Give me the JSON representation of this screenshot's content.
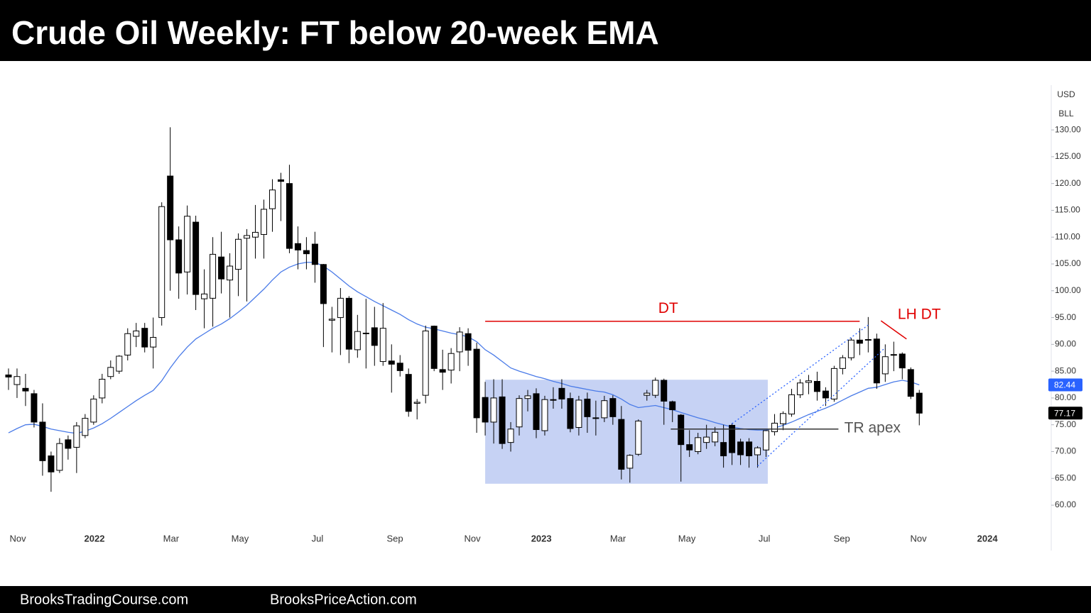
{
  "header": {
    "title": "Crude Oil Weekly: FT below 20-week EMA"
  },
  "footer": {
    "left": "BrooksTradingCourse.com",
    "right": "BrooksPriceAction.com"
  },
  "chart_data": {
    "type": "candlestick",
    "title": "Crude Oil Weekly: FT below 20-week EMA",
    "currency": "USD",
    "unit": "BLL",
    "categories": [
      null,
      null,
      null,
      null,
      null,
      null,
      null,
      null,
      null,
      null,
      null,
      null,
      null,
      null,
      null,
      null,
      null,
      null,
      null,
      null,
      null,
      null,
      null,
      null,
      null,
      null,
      null,
      null,
      null,
      null,
      null,
      null,
      null,
      null,
      null,
      null,
      null,
      null,
      null,
      null,
      null,
      null,
      null,
      null,
      null,
      null,
      null,
      null,
      null,
      null,
      null,
      null,
      null,
      null,
      null,
      null,
      null,
      null,
      null,
      null,
      null,
      null,
      null,
      null,
      null,
      null,
      null,
      null,
      null,
      null,
      null,
      null,
      null,
      null,
      null,
      null,
      null,
      null,
      null,
      null,
      null,
      null,
      null,
      null,
      null,
      null,
      null,
      null,
      null,
      null,
      null,
      null,
      null,
      null,
      null,
      null,
      null,
      null,
      null,
      null,
      null,
      null,
      null,
      null,
      null,
      null,
      null,
      null
    ],
    "open": [
      84.3,
      82.5,
      81.8,
      80.8,
      75.5,
      69.2,
      66.5,
      72.2,
      70.8,
      73,
      75.5,
      80,
      84,
      85,
      88,
      91.5,
      93,
      89.5,
      95,
      121.4,
      109.5,
      103.5,
      112.8,
      98.5,
      98.6,
      106.3,
      102,
      104,
      109.8,
      110,
      110.5,
      115.3,
      120.7,
      120,
      108.8,
      107.5,
      108.7,
      104.9,
      94.5,
      95,
      98.6,
      89,
      92,
      93.1,
      86.8,
      86.9,
      86.5,
      84.4,
      79,
      80.5,
      93.4,
      85.3,
      85.2,
      88.6,
      92,
      89.1,
      80.1,
      75.5,
      80.2,
      71.7,
      74.6,
      79.9,
      80.8,
      73.9,
      79.7,
      81.8,
      79.9,
      74.5,
      79.8,
      76.3,
      76.3,
      79.9,
      76,
      66.9,
      69.5,
      80.5,
      80.5,
      83.3,
      79.3,
      76.8,
      71.3,
      70,
      71.7,
      71.8,
      71.7,
      74.9,
      71.8,
      71.8,
      69.4,
      70.3,
      73.7,
      75.2,
      77,
      80.6,
      82.9,
      83.1,
      81.3,
      79.8,
      85.5,
      87.5,
      90.8,
      90.8,
      91,
      84.5,
      88,
      88.2,
      85.3,
      80.9
    ],
    "high": [
      85.5,
      85.5,
      84.5,
      81.5,
      79,
      70,
      72.5,
      73,
      75.5,
      77,
      80.5,
      84.5,
      87,
      88,
      93,
      94,
      94,
      95,
      116.5,
      130.5,
      112,
      115.9,
      114,
      104,
      110,
      111,
      107,
      110.7,
      111.5,
      116,
      117,
      120.8,
      122,
      123.5,
      112,
      110,
      111,
      105,
      97,
      100.5,
      99,
      95.5,
      98.5,
      97,
      97.7,
      90,
      88,
      85.5,
      79.8,
      93.5,
      93.5,
      89,
      89.3,
      93.2,
      93,
      90.3,
      83,
      83.5,
      83.5,
      75.5,
      80.5,
      81.5,
      81.8,
      80.4,
      82,
      83.5,
      81,
      80.4,
      81,
      79.5,
      80.4,
      80.5,
      78.5,
      69.5,
      76,
      81.5,
      83.8,
      83.6,
      79.5,
      77,
      74,
      73.5,
      75,
      74.6,
      75,
      75.3,
      72.4,
      72.5,
      71,
      74,
      77,
      77.5,
      81.7,
      83.5,
      84.3,
      84.9,
      82,
      86,
      88,
      91.2,
      93,
      95.1,
      92,
      90,
      90.5,
      88.5,
      85.7,
      81.5
    ],
    "low": [
      81.5,
      80,
      78.5,
      74.5,
      65.5,
      62.5,
      66,
      68.5,
      66,
      72.5,
      75,
      79,
      83.5,
      84.5,
      87,
      89.5,
      88.5,
      85.5,
      93.5,
      100,
      98.5,
      99.3,
      96.4,
      93,
      93.3,
      99.5,
      95,
      99,
      98,
      106,
      106,
      111,
      113,
      107,
      104,
      104,
      101.5,
      89.5,
      88.5,
      88,
      86.5,
      87.5,
      85.5,
      86,
      86,
      81,
      84,
      76.5,
      76,
      79,
      85,
      81.5,
      82.7,
      85,
      86,
      73.5,
      73,
      71.5,
      70.5,
      70,
      73,
      77.5,
      72.5,
      73,
      78,
      78,
      73.6,
      73,
      73.5,
      73,
      75.5,
      75,
      64.8,
      64.2,
      69.2,
      79.5,
      80,
      75,
      75.5,
      64.4,
      69,
      69.5,
      70.5,
      71,
      67,
      67.5,
      67.5,
      67,
      67,
      69,
      73,
      74,
      76.5,
      80,
      80.7,
      79.5,
      78.5,
      79.3,
      84.4,
      87,
      88,
      88.5,
      81.7,
      83,
      85,
      83.5,
      79.8,
      74.9
    ],
    "close": [
      83.9,
      84.0,
      81.3,
      75.5,
      68.3,
      66.2,
      71.5,
      70.6,
      74.8,
      76.2,
      79.8,
      83.5,
      85.7,
      87.8,
      92,
      92.5,
      89.5,
      91.3,
      115.7,
      109.5,
      103.3,
      113.9,
      99.3,
      99.4,
      106.8,
      102.2,
      104.6,
      109.6,
      110.3,
      110.9,
      115.2,
      118.8,
      120.4,
      107.9,
      107.6,
      106.9,
      104.9,
      97.6,
      94.7,
      98.6,
      89.1,
      92.4,
      92.1,
      89.8,
      93,
      86.3,
      85.1,
      77.5,
      79.2,
      92.5,
      85.5,
      84.8,
      88.3,
      92.3,
      88.9,
      76.3,
      75.5,
      80,
      71.5,
      74.2,
      79.9,
      80.4,
      74.1,
      79.7,
      79.6,
      79.8,
      74.3,
      79.6,
      76.5,
      76.2,
      79.5,
      76.5,
      66.7,
      69.3,
      75.7,
      80.9,
      83.3,
      79.4,
      77.8,
      71.3,
      70.3,
      72.6,
      72.7,
      73.6,
      69.2,
      69.8,
      69.4,
      69.2,
      70.7,
      73.9,
      75.3,
      77.1,
      80.6,
      82.8,
      83.2,
      81.2,
      80,
      85.5,
      87.5,
      90.8,
      90.2,
      90.9,
      82.8,
      87.7,
      88.1,
      85.6,
      80.3,
      77.17
    ],
    "up_color": "#ffffff",
    "down_color": "#000000",
    "ema": {
      "color": "#4a7be8",
      "values": [
        73.5,
        74.3,
        75,
        75.1,
        74.7,
        74.2,
        73.9,
        73.6,
        73.4,
        73.8,
        74.4,
        75.2,
        76.2,
        77.3,
        78.4,
        79.5,
        80.5,
        81.4,
        83.2,
        85.6,
        87.7,
        89.5,
        91,
        92,
        93,
        93.8,
        94.8,
        96,
        97.3,
        98.8,
        100.3,
        102,
        103.5,
        104.4,
        105,
        105.3,
        105.3,
        104.6,
        103.5,
        102.2,
        100.9,
        99.8,
        98.9,
        98,
        97.2,
        96.4,
        95.6,
        94.6,
        93.8,
        93.2,
        92.9,
        92.5,
        92.1,
        91.8,
        91.4,
        90.5,
        89,
        88,
        86.8,
        85.6,
        85,
        84.5,
        84,
        83.6,
        83.1,
        82.7,
        82.2,
        81.9,
        81.6,
        81.3,
        81.1,
        80.6,
        79.8,
        78.8,
        78.2,
        78.4,
        78.6,
        78.2,
        77.8,
        77.3,
        76.8,
        76.3,
        75.9,
        75.4,
        75,
        74.6,
        74.3,
        74.1,
        74,
        74,
        74.4,
        74.9,
        75.5,
        76.2,
        76.9,
        77.5,
        78.1,
        78.8,
        79.6,
        80.4,
        81.1,
        81.8,
        82,
        82.5,
        83,
        83.3,
        83,
        82.44
      ]
    },
    "price_tags": [
      {
        "value": 82.44,
        "color": "#2962ff"
      },
      {
        "value": 77.17,
        "color": "#000000"
      }
    ],
    "xlim": [
      -1,
      122.5
    ],
    "ylim": [
      56.3,
      141.0
    ],
    "yticks": [
      {
        "value": 60,
        "label": "60.00"
      },
      {
        "value": 65,
        "label": "65.00"
      },
      {
        "value": 70,
        "label": "70.00"
      },
      {
        "value": 75,
        "label": "75.00"
      },
      {
        "value": 80,
        "label": "80.00"
      },
      {
        "value": 85,
        "label": "85.00"
      },
      {
        "value": 90,
        "label": "90.00"
      },
      {
        "value": 95,
        "label": "95.00"
      },
      {
        "value": 100,
        "label": "100.00"
      },
      {
        "value": 105,
        "label": "105.00"
      },
      {
        "value": 110,
        "label": "110.00"
      },
      {
        "value": 115,
        "label": "115.00"
      },
      {
        "value": 120,
        "label": "120.00"
      },
      {
        "value": 125,
        "label": "125.00"
      },
      {
        "value": 130,
        "label": "130.00"
      }
    ],
    "xticks": [
      {
        "value": 1.09,
        "label": "Nov"
      },
      {
        "value": 10.1,
        "label": "2022"
      },
      {
        "value": 19.1,
        "label": "Mar"
      },
      {
        "value": 27.2,
        "label": "May"
      },
      {
        "value": 36.3,
        "label": "Jul"
      },
      {
        "value": 45.4,
        "label": "Sep"
      },
      {
        "value": 54.5,
        "label": "Nov"
      },
      {
        "value": 62.6,
        "label": "2023"
      },
      {
        "value": 71.6,
        "label": "Mar"
      },
      {
        "value": 79.7,
        "label": "May"
      },
      {
        "value": 88.8,
        "label": "Jul"
      },
      {
        "value": 97.9,
        "label": "Sep"
      },
      {
        "value": 106.9,
        "label": "Nov"
      },
      {
        "value": 115.0,
        "label": "2024"
      }
    ],
    "box_annotations": [
      {
        "x": [
          56,
          89.2
        ],
        "y": [
          64,
          83.4
        ],
        "color": "#c6d2f4"
      }
    ],
    "line_annotations": [
      {
        "x": [
          56,
          100
        ],
        "y": [
          94.3,
          94.3
        ],
        "color": "#e00000",
        "style": "solid"
      },
      {
        "x": [
          102.5,
          105.5
        ],
        "y": [
          94.4,
          91.0
        ],
        "color": "#e00000",
        "style": "solid"
      },
      {
        "x": [
          77.8,
          97.5
        ],
        "y": [
          74.2,
          74.2
        ],
        "color": "#333333",
        "style": "solid"
      },
      {
        "x": [
          88,
          103
        ],
        "y": [
          67.3,
          89.4
        ],
        "color": "#2962ff",
        "style": "dotted"
      },
      {
        "x": [
          85,
          101
        ],
        "y": [
          75.2,
          93.6
        ],
        "color": "#2962ff",
        "style": "dotted"
      }
    ],
    "text_annotations": [
      {
        "text": "DT",
        "x": 77.5,
        "y": 96.6,
        "color": "#e00000"
      },
      {
        "text": "LH DT",
        "x": 107,
        "y": 95.5,
        "color": "#e00000"
      },
      {
        "text": "TR apex",
        "x": 101.5,
        "y": 74.3,
        "color": "#555555"
      }
    ]
  }
}
